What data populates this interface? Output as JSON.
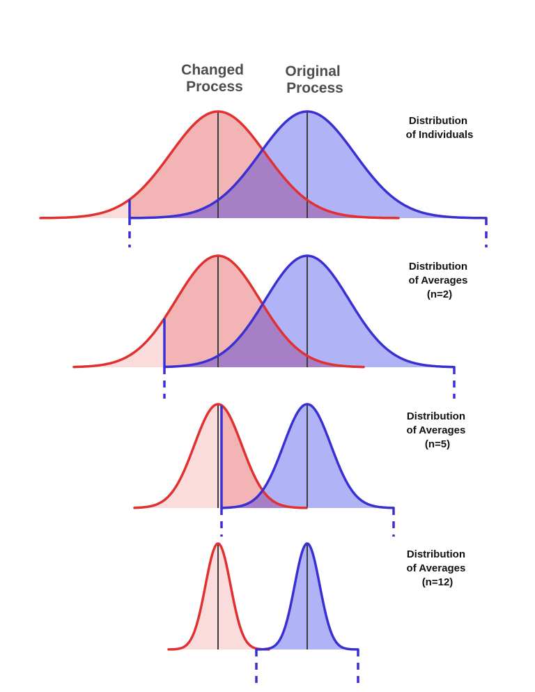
{
  "headers": {
    "changed": [
      "Changed",
      "Process"
    ],
    "original": [
      "Original",
      "Process"
    ]
  },
  "panels": [
    {
      "label": [
        "Distribution",
        "of Individuals"
      ]
    },
    {
      "label": [
        "Distribution",
        "of Averages",
        "(n=2)"
      ]
    },
    {
      "label": [
        "Distribution",
        "of Averages",
        "(n=5)"
      ]
    },
    {
      "label": [
        "Distribution",
        "of Averages",
        "(n=12)"
      ]
    }
  ],
  "colors": {
    "changed_line": "#e03030",
    "original_line": "#3a2fd0",
    "changed_fill_light": "#fadcdc",
    "changed_fill_mid": "#f2b4b4",
    "original_fill": "#b1b3f7",
    "overlap_fill": "#a77fc6",
    "mean_line": "#3a3a3a",
    "limit_line": "#3a2fd0"
  },
  "icons": {
    "curve_changed": "bell-curve-red",
    "curve_original": "bell-curve-blue"
  }
}
